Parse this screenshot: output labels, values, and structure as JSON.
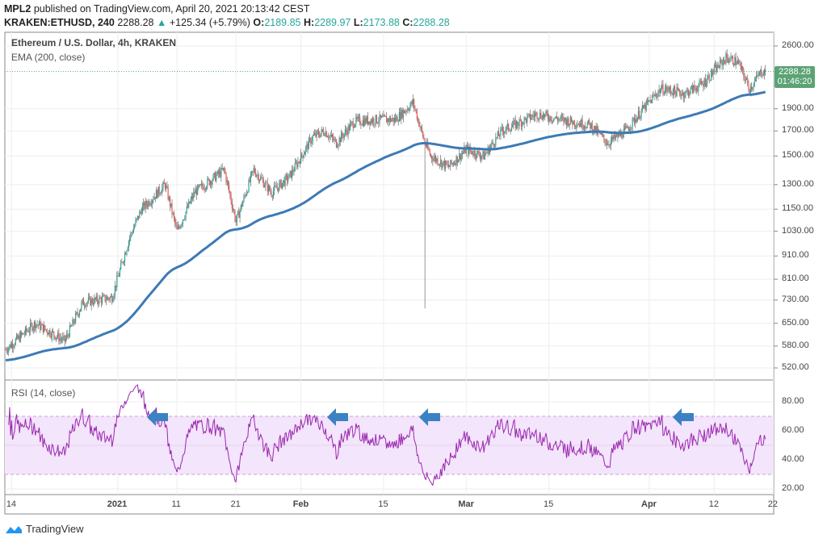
{
  "header": {
    "publisher": "MPL2",
    "published_text": "published on TradingView.com, April 20, 2021 20:13:42 CEST",
    "symbol": "KRAKEN:ETHUSD, 240",
    "last": "2288.28",
    "change": "+125.34 (+5.79%)",
    "o_label": "O:",
    "o": "2189.85",
    "h_label": "H:",
    "h": "2289.97",
    "l_label": "L:",
    "l": "2173.88",
    "c_label": "C:",
    "c": "2288.28"
  },
  "legend": {
    "title": "Ethereum / U.S. Dollar, 4h, KRAKEN",
    "ema": "EMA (200, close)",
    "rsi": "RSI (14, close)"
  },
  "price_tag": {
    "price": "2288.28",
    "countdown": "01:46:20"
  },
  "brand": "TradingView",
  "colors": {
    "up": "#26a69a",
    "down": "#ef5350",
    "ema": "#3d7ab5",
    "rsi": "#9c27b0",
    "rsi_band": "#f3e5fb",
    "arrow": "#3b82c4",
    "tag": "#5ba374"
  },
  "chart_data": [
    {
      "type": "candlestick",
      "title": "Ethereum / U.S. Dollar, 4h, KRAKEN",
      "yscale": "log",
      "y_ticks": [
        "2600.00",
        "1900.00",
        "1700.00",
        "1500.00",
        "1300.00",
        "1150.00",
        "1030.00",
        "910.00",
        "810.00",
        "730.00",
        "650.00",
        "580.00",
        "520.00"
      ],
      "x_ticks": [
        "14",
        "2021",
        "11",
        "21",
        "Feb",
        "15",
        "Mar",
        "15",
        "Apr",
        "12",
        "22"
      ],
      "approx_close_path": [
        [
          "2020-12-13",
          570
        ],
        [
          "2020-12-18",
          650
        ],
        [
          "2020-12-23",
          595
        ],
        [
          "2020-12-26",
          720
        ],
        [
          "2020-12-31",
          740
        ],
        [
          "2021-01-03",
          1000
        ],
        [
          "2021-01-05",
          1150
        ],
        [
          "2021-01-09",
          1300
        ],
        [
          "2021-01-11",
          1030
        ],
        [
          "2021-01-14",
          1250
        ],
        [
          "2021-01-19",
          1400
        ],
        [
          "2021-01-21",
          1080
        ],
        [
          "2021-01-24",
          1400
        ],
        [
          "2021-01-27",
          1250
        ],
        [
          "2021-01-30",
          1350
        ],
        [
          "2021-02-03",
          1650
        ],
        [
          "2021-02-05",
          1700
        ],
        [
          "2021-02-07",
          1600
        ],
        [
          "2021-02-10",
          1780
        ],
        [
          "2021-02-14",
          1800
        ],
        [
          "2021-02-17",
          1800
        ],
        [
          "2021-02-20",
          1960
        ],
        [
          "2021-02-22",
          1600
        ],
        [
          "2021-02-23",
          1500
        ],
        [
          "2021-02-26",
          1420
        ],
        [
          "2021-03-01",
          1550
        ],
        [
          "2021-03-04",
          1500
        ],
        [
          "2021-03-07",
          1700
        ],
        [
          "2021-03-13",
          1850
        ],
        [
          "2021-03-17",
          1800
        ],
        [
          "2021-03-22",
          1750
        ],
        [
          "2021-03-25",
          1600
        ],
        [
          "2021-03-28",
          1700
        ],
        [
          "2021-03-31",
          1900
        ],
        [
          "2021-04-03",
          2100
        ],
        [
          "2021-04-07",
          2050
        ],
        [
          "2021-04-10",
          2150
        ],
        [
          "2021-04-14",
          2450
        ],
        [
          "2021-04-16",
          2400
        ],
        [
          "2021-04-18",
          2100
        ],
        [
          "2021-04-20",
          2288.28
        ]
      ],
      "wick_low": {
        "date": "2021-02-22",
        "value": 700
      },
      "series": [
        {
          "name": "EMA (200, close)",
          "type": "line"
        }
      ]
    },
    {
      "type": "line",
      "title": "RSI (14, close)",
      "y_ticks": [
        "80.00",
        "60.00",
        "40.00",
        "20.00"
      ],
      "band": [
        30,
        70
      ],
      "ylim": [
        15,
        95
      ],
      "annotations": [
        "arrow-left",
        "arrow-left",
        "arrow-left",
        "arrow-left"
      ]
    }
  ]
}
